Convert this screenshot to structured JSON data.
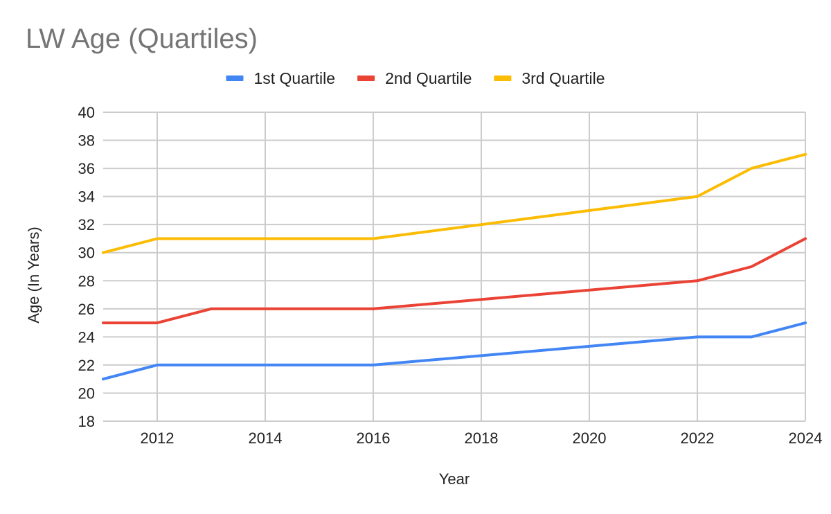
{
  "chart_data": {
    "type": "line",
    "title": "LW Age (Quartiles)",
    "xlabel": "Year",
    "ylabel": "Age (In Years)",
    "xlim": [
      2011,
      2024
    ],
    "ylim": [
      18,
      40
    ],
    "x_ticks": [
      "2012",
      "2014",
      "2016",
      "2018",
      "2020",
      "2022",
      "2024"
    ],
    "y_ticks": [
      "18",
      "20",
      "22",
      "24",
      "26",
      "28",
      "30",
      "32",
      "34",
      "36",
      "38",
      "40"
    ],
    "legend_position": "top-center",
    "grid": true,
    "x": [
      2011,
      2012,
      2013,
      2016,
      2022,
      2023,
      2024
    ],
    "series": [
      {
        "name": "1st Quartile",
        "color": "#4285f4",
        "values": [
          21,
          22,
          22,
          22,
          24,
          24,
          25
        ]
      },
      {
        "name": "2nd Quartile",
        "color": "#ea4335",
        "values": [
          25,
          25,
          26,
          26,
          28,
          29,
          31
        ]
      },
      {
        "name": "3rd Quartile",
        "color": "#fbbc04",
        "values": [
          30,
          31,
          31,
          31,
          34,
          36,
          37
        ]
      }
    ]
  }
}
